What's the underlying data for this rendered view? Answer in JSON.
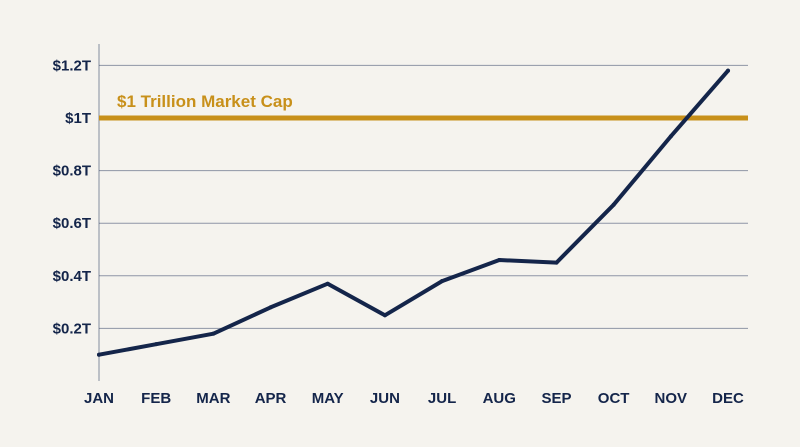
{
  "chart_data": {
    "type": "line",
    "title": "",
    "xlabel": "",
    "ylabel": "",
    "categories": [
      "JAN",
      "FEB",
      "MAR",
      "APR",
      "MAY",
      "JUN",
      "JUL",
      "AUG",
      "SEP",
      "OCT",
      "NOV",
      "DEC"
    ],
    "series": [
      {
        "values": [
          0.1,
          0.14,
          0.18,
          0.28,
          0.37,
          0.25,
          0.38,
          0.46,
          0.45,
          0.67,
          0.93,
          1.18
        ],
        "color": "#14254a"
      }
    ],
    "ylim": [
      0,
      1.3
    ],
    "yticks": [
      0.2,
      0.4,
      0.6,
      0.8,
      1.0,
      1.2
    ],
    "ytick_labels": [
      "$0.2T",
      "$0.4T",
      "$0.6T",
      "$0.8T",
      "$1T",
      "$1.2T"
    ],
    "grid": "horizontal",
    "reference_line": {
      "value": 1.0,
      "label": "$1 Trillion Market Cap",
      "color": "#c8901a"
    },
    "legend": "none"
  }
}
